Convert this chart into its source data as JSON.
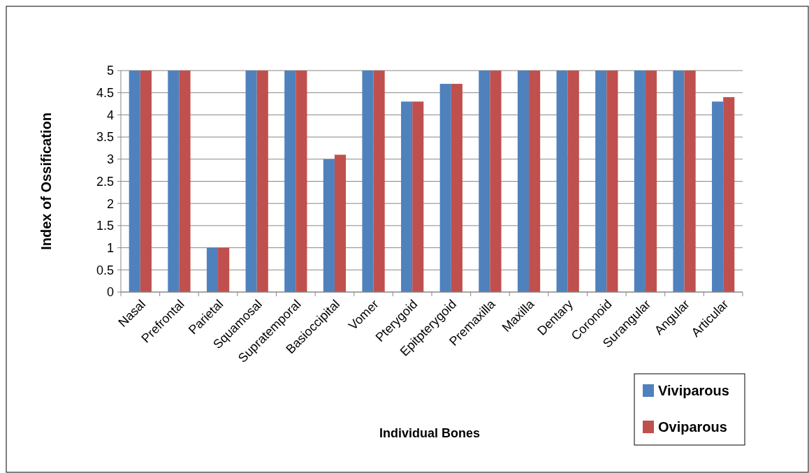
{
  "chart_data": {
    "type": "bar",
    "xlabel": "Individual Bones",
    "ylabel": "Index of Ossification",
    "categories": [
      "Nasal",
      "Prefrontal",
      "Parietal",
      "Squamosal",
      "Supratemporal",
      "Basioccipital",
      "Vomer",
      "Pterygoid",
      "Epitpterygoid",
      "Premaxilla",
      "Maxilla",
      "Dentary",
      "Coronoid",
      "Surangular",
      "Angular",
      "Articular"
    ],
    "series": [
      {
        "name": "Viviparous",
        "color": "#4f81bd",
        "values": [
          5,
          5,
          1,
          5,
          5,
          3,
          5,
          4.3,
          4.7,
          5,
          5,
          5,
          5,
          5,
          5,
          4.3
        ]
      },
      {
        "name": "Oviparous",
        "color": "#c0504d",
        "values": [
          5,
          5,
          1,
          5,
          5,
          3.1,
          5,
          4.3,
          4.7,
          5,
          5,
          5,
          5,
          5,
          5,
          4.4
        ]
      }
    ],
    "ylim": [
      0,
      5
    ],
    "yticks": [
      0,
      0.5,
      1,
      1.5,
      2,
      2.5,
      3,
      3.5,
      4,
      4.5,
      5
    ],
    "grid": "y",
    "legend": "bottom right"
  }
}
